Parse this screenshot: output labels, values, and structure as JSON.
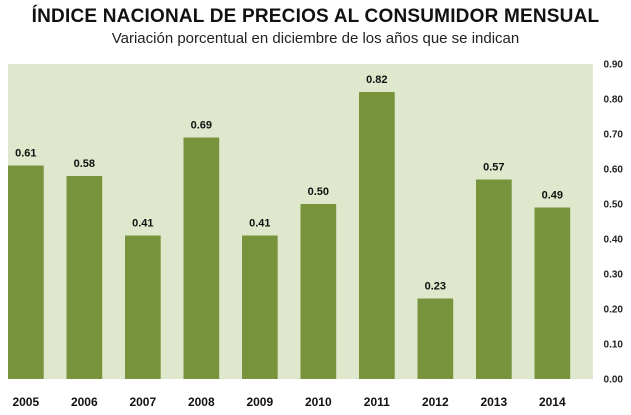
{
  "chart_data": {
    "type": "bar",
    "title": "ÍNDICE NACIONAL DE PRECIOS AL CONSUMIDOR MENSUAL",
    "subtitle": "Variación porcentual en diciembre de los años que se indican",
    "categories": [
      "2005",
      "2006",
      "2007",
      "2008",
      "2009",
      "2010",
      "2011",
      "2012",
      "2013",
      "2014"
    ],
    "values": [
      0.61,
      0.58,
      0.41,
      0.69,
      0.41,
      0.5,
      0.82,
      0.23,
      0.57,
      0.49
    ],
    "data_labels": [
      "0.61",
      "0.58",
      "0.41",
      "0.69",
      "0.41",
      "0.50",
      "0.82",
      "0.23",
      "0.57",
      "0.49"
    ],
    "yticks": [
      "0.00",
      "0.10",
      "0.20",
      "0.30",
      "0.40",
      "0.50",
      "0.60",
      "0.70",
      "0.80",
      "0.90"
    ],
    "ylim": [
      0,
      0.9
    ],
    "y_axis_side": "right",
    "grid": false,
    "colors": {
      "plot_background": "#dfe8cd",
      "bar": "#77943c"
    }
  }
}
